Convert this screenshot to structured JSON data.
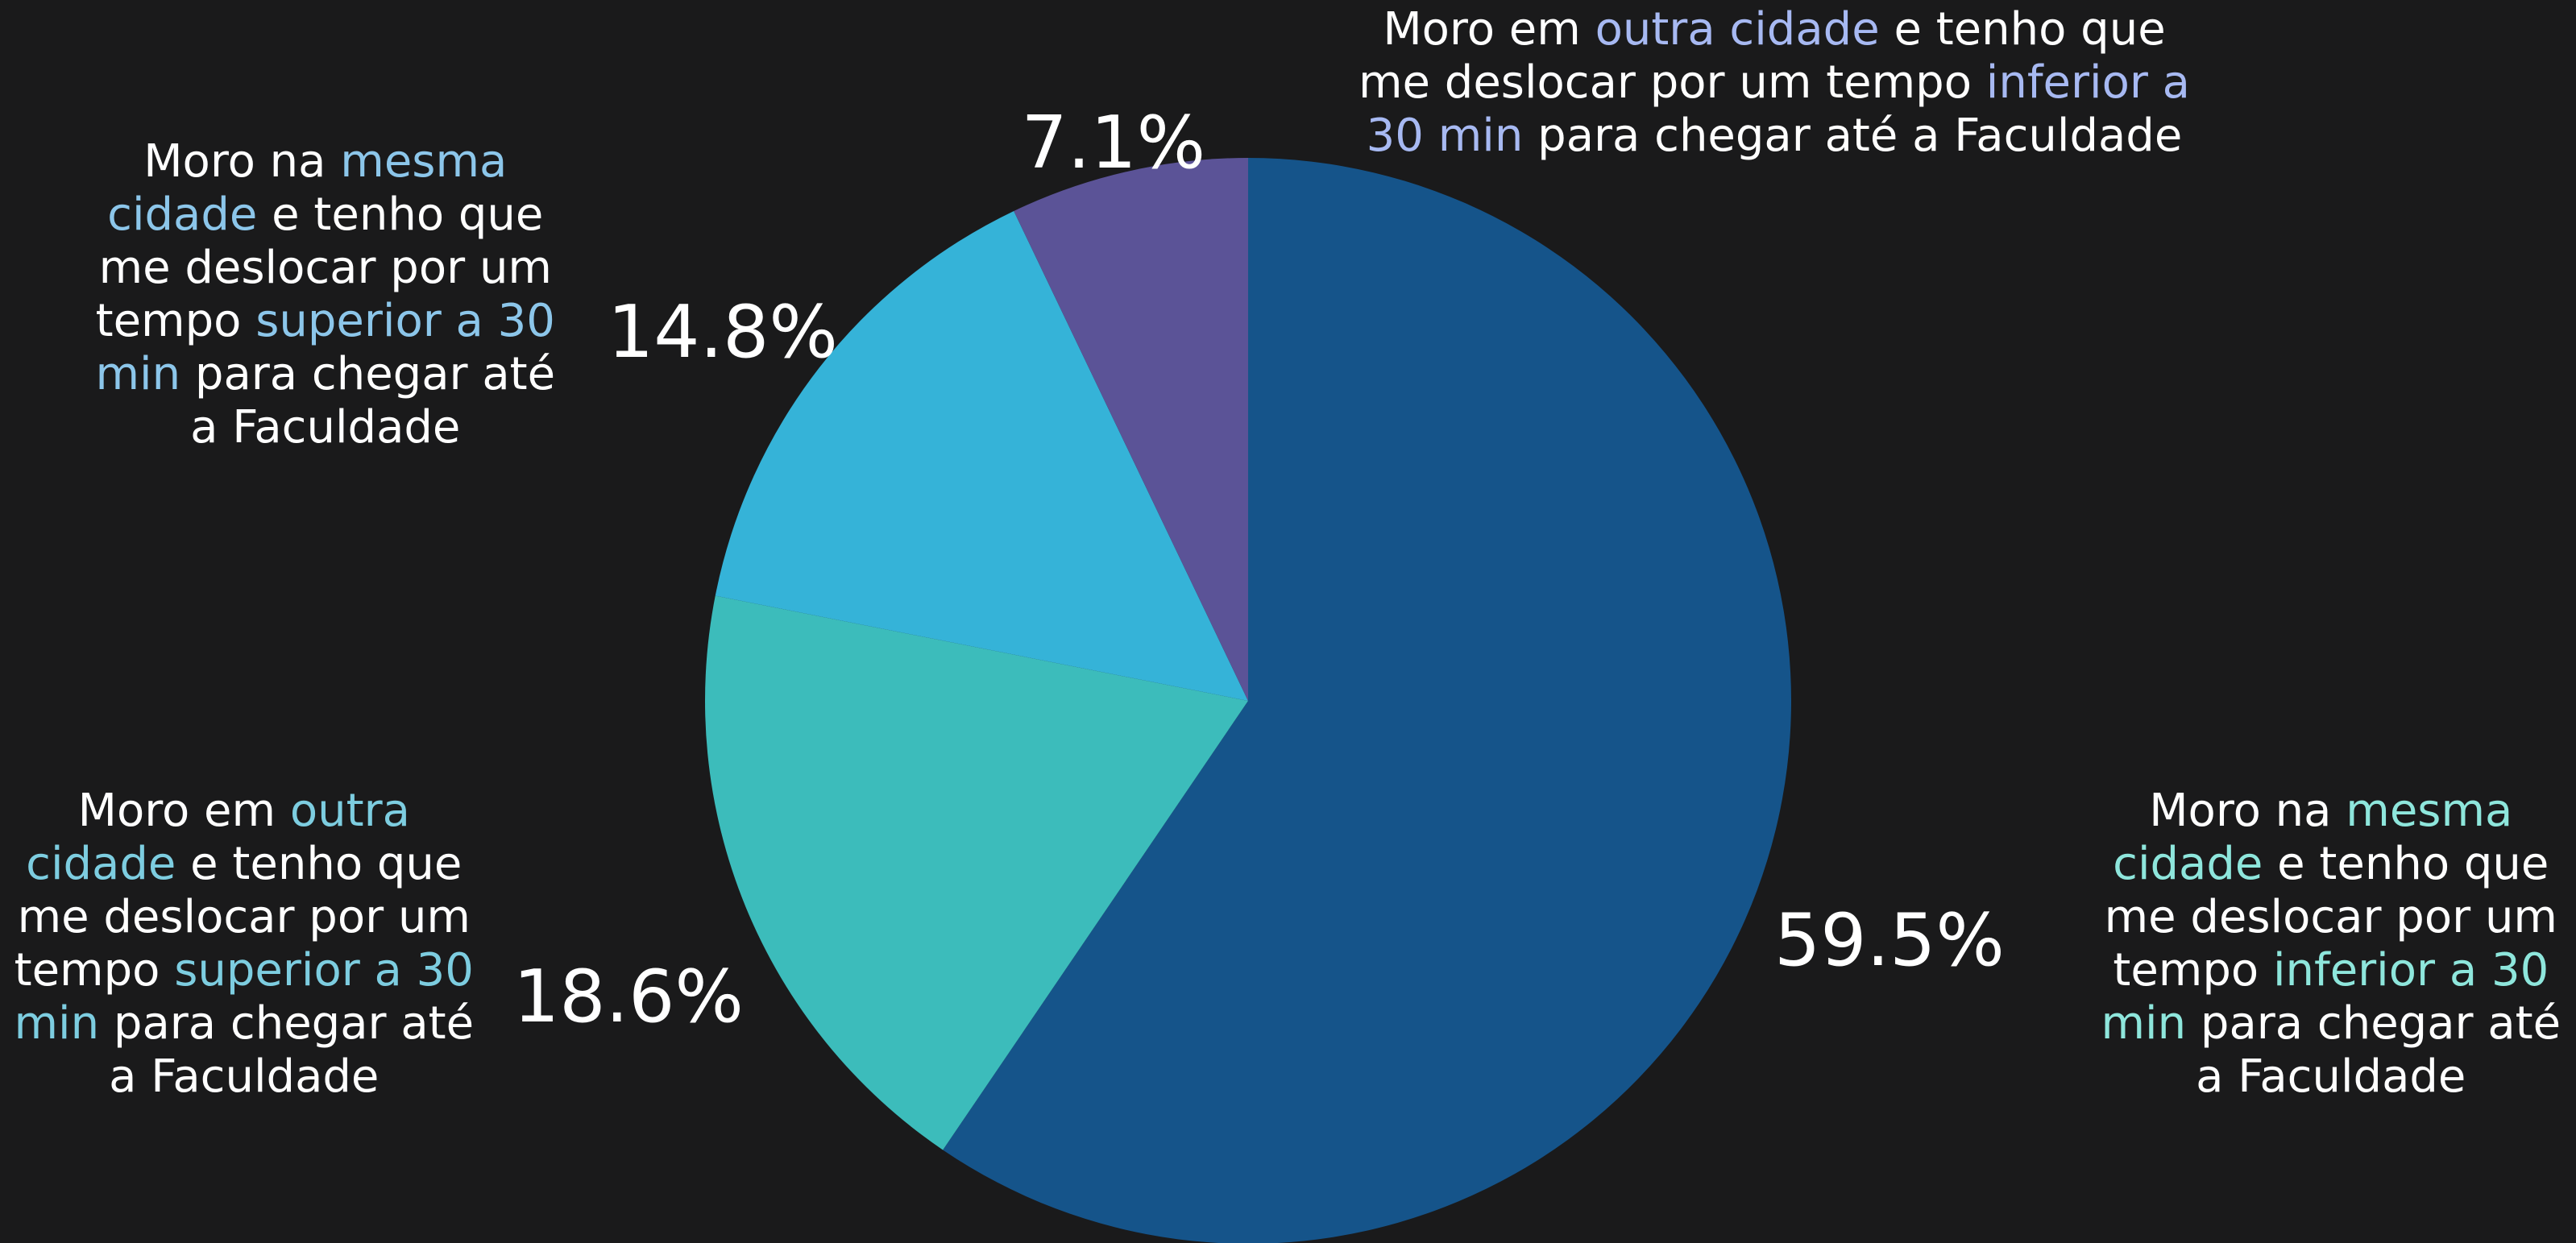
{
  "chart_data": {
    "type": "pie",
    "title": "",
    "start": "top",
    "direction": "clockwise",
    "colors": {
      "background": "#1a1a1b",
      "text": "#ffffff"
    },
    "slices": [
      {
        "value": 59.5,
        "label": "59.5%",
        "color": "#15548a",
        "highlight_color": "#8ee6dc",
        "category_lines": [
          [
            {
              "text": "Moro na "
            },
            {
              "text": "mesma",
              "hl": true
            }
          ],
          [
            {
              "text": "cidade",
              "hl": true
            },
            {
              "text": " e tenho que"
            }
          ],
          [
            {
              "text": "me deslocar por um"
            }
          ],
          [
            {
              "text": "tempo "
            },
            {
              "text": "inferior a 30",
              "hl": true
            }
          ],
          [
            {
              "text": "min",
              "hl": true
            },
            {
              "text": " para chegar até"
            }
          ],
          [
            {
              "text": "a Faculdade"
            }
          ]
        ]
      },
      {
        "value": 18.6,
        "label": "18.6%",
        "color": "#3cbcbb",
        "highlight_color": "#7dcde0",
        "category_lines": [
          [
            {
              "text": "Moro em "
            },
            {
              "text": "outra",
              "hl": true
            }
          ],
          [
            {
              "text": "cidade",
              "hl": true
            },
            {
              "text": " e tenho que"
            }
          ],
          [
            {
              "text": "me deslocar por um"
            }
          ],
          [
            {
              "text": "tempo "
            },
            {
              "text": "superior a 30",
              "hl": true
            }
          ],
          [
            {
              "text": "min",
              "hl": true
            },
            {
              "text": " para chegar até"
            }
          ],
          [
            {
              "text": "a Faculdade"
            }
          ]
        ]
      },
      {
        "value": 14.8,
        "label": "14.8%",
        "color": "#35b3d8",
        "highlight_color": "#8cc6ea",
        "category_lines": [
          [
            {
              "text": "Moro na "
            },
            {
              "text": "mesma",
              "hl": true
            }
          ],
          [
            {
              "text": "cidade",
              "hl": true
            },
            {
              "text": " e tenho que"
            }
          ],
          [
            {
              "text": "me deslocar por um"
            }
          ],
          [
            {
              "text": "tempo "
            },
            {
              "text": "superior a 30",
              "hl": true
            }
          ],
          [
            {
              "text": "min",
              "hl": true
            },
            {
              "text": " para chegar até"
            }
          ],
          [
            {
              "text": "a Faculdade"
            }
          ]
        ]
      },
      {
        "value": 7.1,
        "label": "7.1%",
        "color": "#5b5397",
        "highlight_color": "#a7b9f2",
        "category_lines": [
          [
            {
              "text": "Moro em "
            },
            {
              "text": "outra cidade",
              "hl": true
            },
            {
              "text": " e tenho que"
            }
          ],
          [
            {
              "text": "me deslocar por um tempo "
            },
            {
              "text": "inferior a",
              "hl": true
            }
          ],
          [
            {
              "text": "30 min",
              "hl": true
            },
            {
              "text": " para chegar até a Faculdade"
            }
          ]
        ]
      }
    ]
  }
}
